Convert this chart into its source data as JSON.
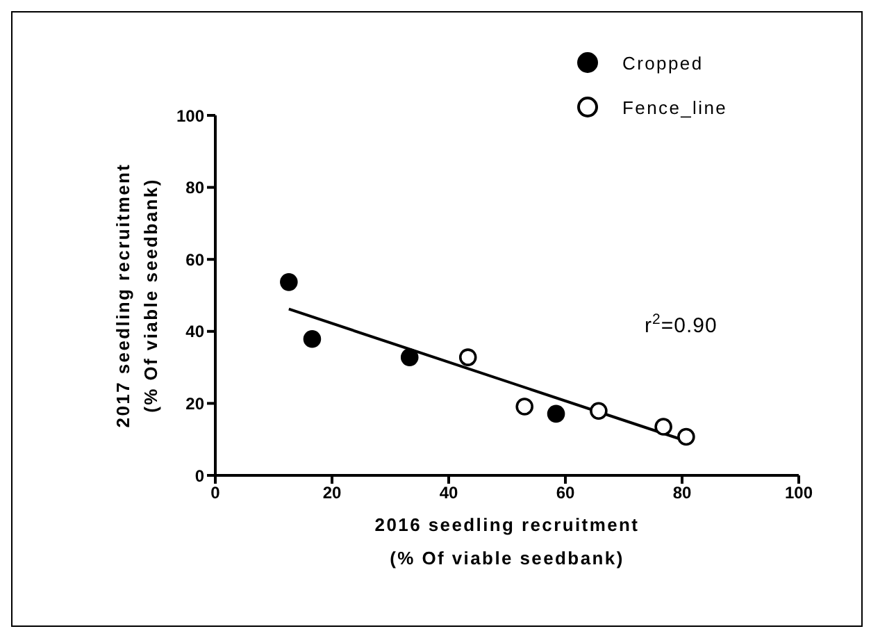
{
  "chart_data": {
    "type": "scatter",
    "xlabel": "2016 seedling recruitment\n(% Of viable seedbank)",
    "ylabel": "2017 seedling recruitment\n(% Of viable seedbank)",
    "xlim": [
      0,
      100
    ],
    "xticks": [
      0,
      20,
      40,
      60,
      80,
      100
    ],
    "ylim": [
      0,
      100
    ],
    "yticks": [
      0,
      20,
      40,
      60,
      80,
      100
    ],
    "grid": false,
    "legend": "top right",
    "annotations": [
      "r$^{2}$=0.90"
    ],
    "series": [
      {
        "name": "Cropped",
        "color": "#000000",
        "marker": "circle",
        "x": [
          12.6,
          16.6,
          33.3,
          58.4
        ],
        "values": [
          53.7,
          37.9,
          32.8,
          17.1
        ]
      },
      {
        "name": "Fence_line",
        "color": "#ffffff",
        "marker": "circle",
        "x": [
          43.3,
          53.0,
          65.7,
          76.8,
          80.7
        ],
        "values": [
          32.8,
          19.1,
          17.9,
          13.5,
          10.7
        ]
      },
      {
        "type": "line",
        "color": "#000000",
        "marker": "none",
        "x": [
          12.6,
          80.6
        ],
        "values": [
          46.2,
          9.6
        ]
      }
    ]
  }
}
